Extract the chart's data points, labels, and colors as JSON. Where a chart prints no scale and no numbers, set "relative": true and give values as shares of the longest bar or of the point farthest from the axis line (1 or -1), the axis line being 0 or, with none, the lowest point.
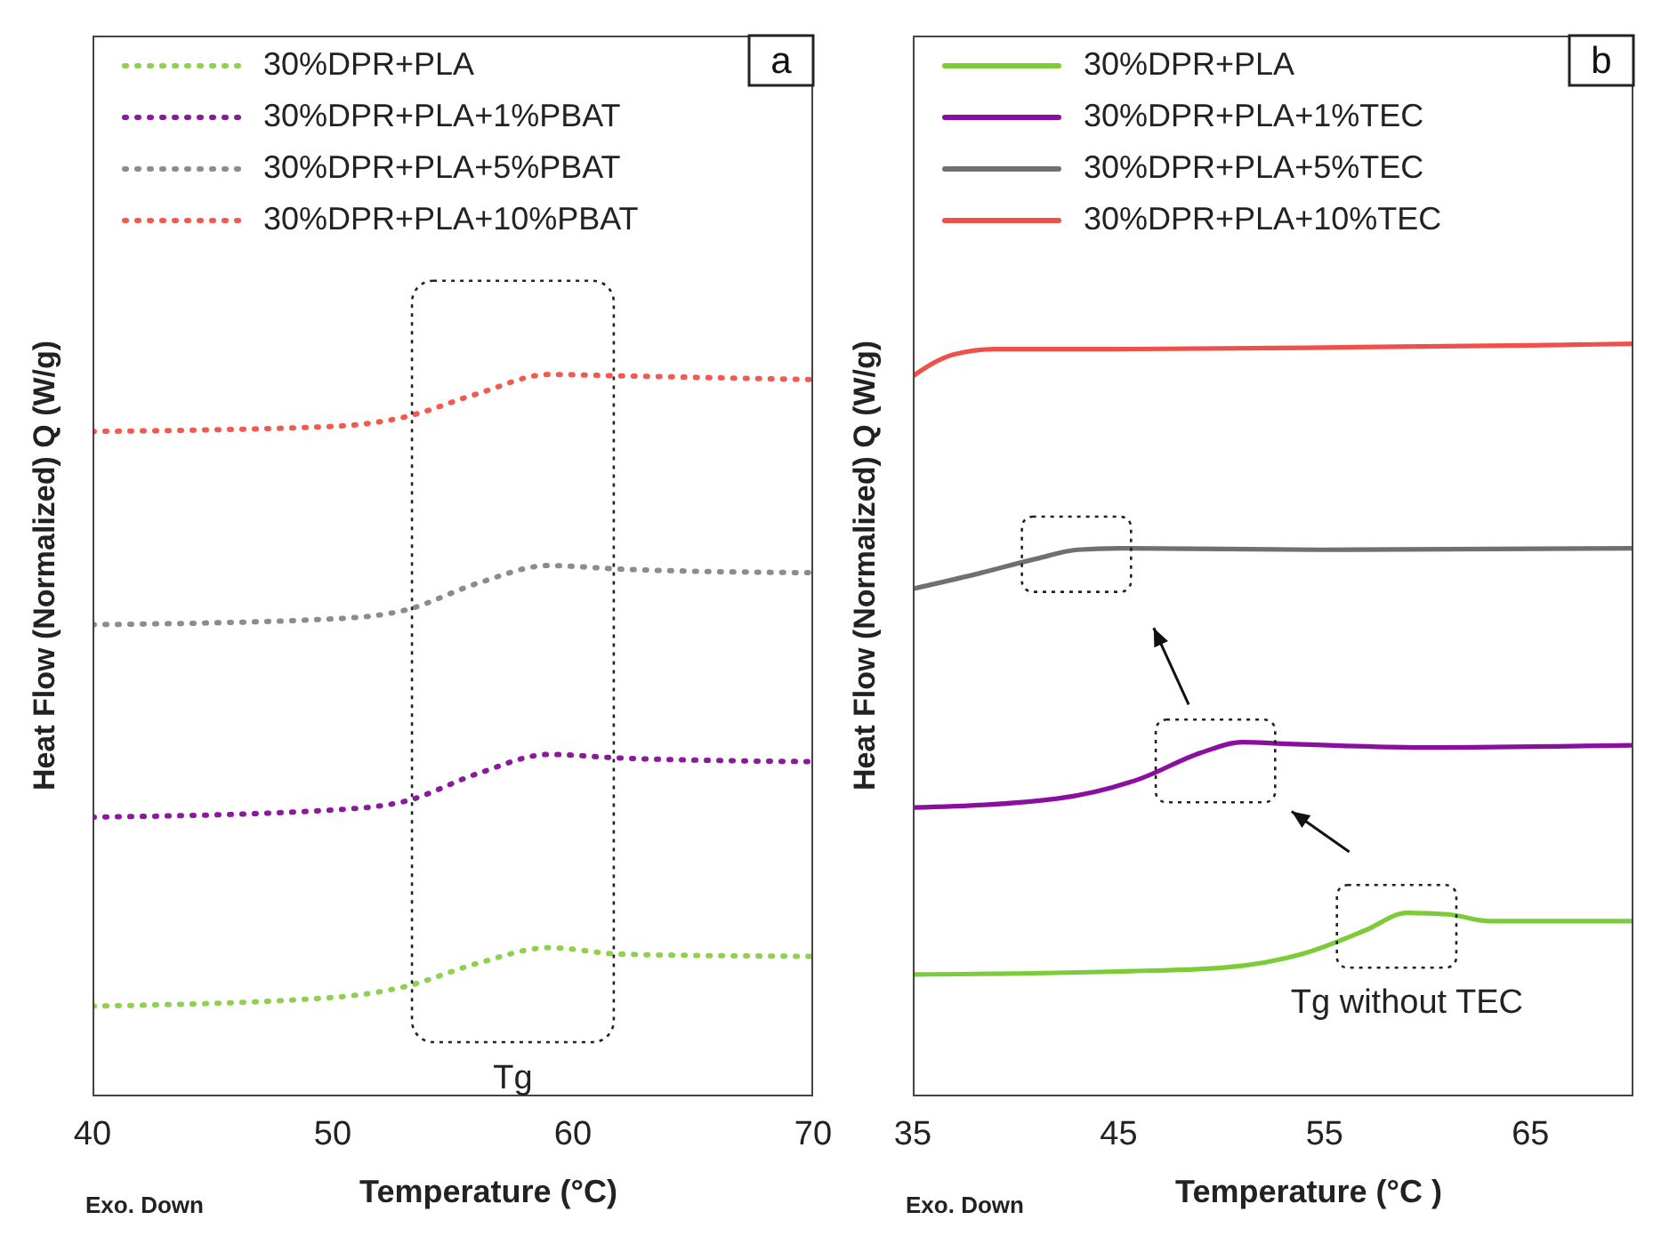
{
  "chart_data": [
    {
      "type": "line",
      "relative": true,
      "ylabel": "Heat Flow (Normalized) Q (W/g)",
      "xlabel": "Temperature (°C)",
      "xlim": [
        40,
        70
      ],
      "xticks": [
        40,
        50,
        60,
        70
      ],
      "legend": "top left",
      "line_style": "dotted",
      "marker": "none",
      "annotations": [
        "a",
        "Tg",
        "Exo. Down"
      ],
      "series": [
        {
          "name": "30%DPR+PLA",
          "color": "#8fd14f",
          "x": [
            40,
            50,
            53,
            56,
            59,
            62,
            70
          ],
          "values": [
            0.124,
            0.136,
            0.151,
            0.183,
            0.205,
            0.196,
            0.193
          ]
        },
        {
          "name": "30%DPR+PLA+1%PBAT",
          "color": "#8b1a9b",
          "x": [
            40,
            50,
            53,
            56,
            59,
            62,
            70
          ],
          "values": [
            0.386,
            0.396,
            0.408,
            0.446,
            0.473,
            0.468,
            0.463
          ]
        },
        {
          "name": "30%DPR+PLA+5%PBAT",
          "color": "#8c8c8c",
          "x": [
            40,
            50,
            53,
            56,
            59,
            62,
            70
          ],
          "values": [
            0.653,
            0.661,
            0.673,
            0.71,
            0.735,
            0.73,
            0.725
          ]
        },
        {
          "name": "30%DPR+PLA+10%PBAT",
          "color": "#f4594f",
          "x": [
            40,
            50,
            53,
            56,
            59,
            62,
            70
          ],
          "values": [
            0.921,
            0.928,
            0.941,
            0.973,
            1,
            0.998,
            0.993
          ]
        }
      ]
    },
    {
      "type": "line",
      "relative": true,
      "ylabel": "Heat Flow (Normalized) Q (W/g)",
      "xlabel": "Temperature (°C )",
      "xlim": [
        35,
        70
      ],
      "xticks": [
        35,
        45,
        55,
        65
      ],
      "legend": "top left",
      "line_style": "solid",
      "marker": "none",
      "annotations": [
        "b",
        "Tg without TEC",
        "Exo. Down"
      ],
      "series": [
        {
          "name": "30%DPR+PLA",
          "color": "#7ccc3a",
          "x": [
            35,
            45,
            50,
            54,
            57,
            59,
            61,
            63,
            70
          ],
          "values": [
            0.161,
            0.165,
            0.17,
            0.189,
            0.22,
            0.243,
            0.241,
            0.232,
            0.232
          ]
        },
        {
          "name": "30%DPR+PLA+1%TEC",
          "color": "#8b0f9e",
          "x": [
            35,
            42,
            46,
            49,
            51,
            53,
            60,
            70
          ],
          "values": [
            0.383,
            0.395,
            0.421,
            0.456,
            0.47,
            0.468,
            0.463,
            0.466
          ]
        },
        {
          "name": "30%DPR+PLA+5%TEC",
          "color": "#707070",
          "x": [
            35,
            38,
            41,
            43,
            45,
            55,
            70
          ],
          "values": [
            0.674,
            0.693,
            0.714,
            0.726,
            0.728,
            0.726,
            0.728
          ]
        },
        {
          "name": "30%DPR+PLA+10%TEC",
          "color": "#f0504a",
          "x": [
            35,
            37,
            39,
            45,
            55,
            65,
            70
          ],
          "values": [
            0.957,
            0.986,
            0.993,
            0.993,
            0.995,
            0.998,
            1
          ]
        }
      ]
    }
  ]
}
